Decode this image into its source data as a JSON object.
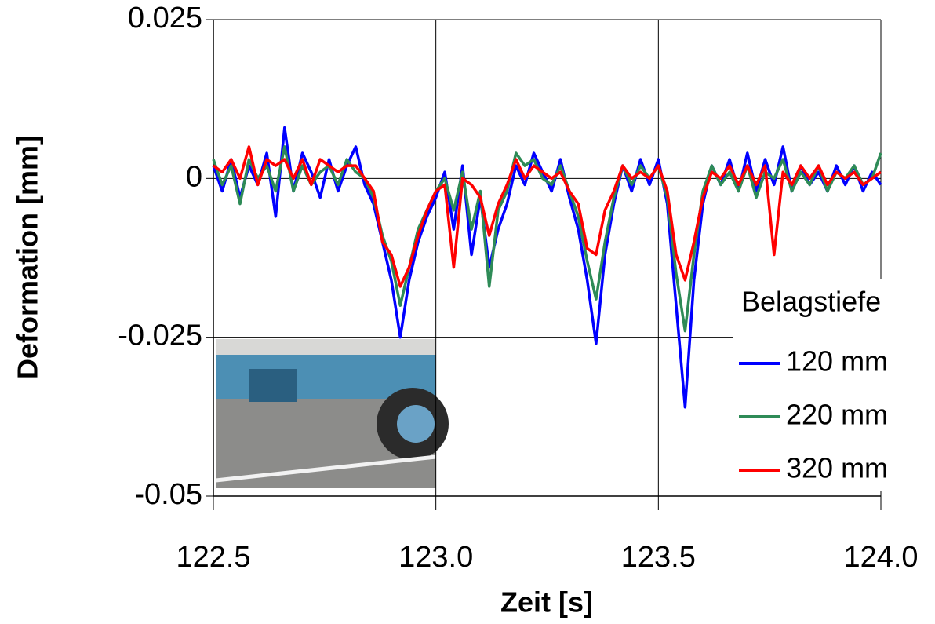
{
  "chart_data": {
    "type": "line",
    "x_label": "Zeit [s]",
    "y_label": "Deformation [mm]",
    "legend_title": "Belagstiefe",
    "legend": "right",
    "grid": true,
    "xlim": [
      122.5,
      124.0
    ],
    "xticks": [
      122.5,
      {
        "value": 123,
        "label": "123.0"
      },
      123.5,
      {
        "value": 124,
        "label": "124.0"
      }
    ],
    "ylim": [
      -0.05,
      0.025
    ],
    "yticks": [
      -0.05,
      -0.025,
      0,
      0.025
    ],
    "x": [
      122.5,
      122.52,
      122.54,
      122.56,
      122.58,
      122.6,
      122.62,
      122.64,
      122.66,
      122.68,
      122.7,
      122.72,
      122.74,
      122.76,
      122.78,
      122.8,
      122.82,
      122.84,
      122.86,
      122.88,
      122.9,
      122.92,
      122.94,
      122.96,
      122.98,
      123,
      123.02,
      123.04,
      123.06,
      123.08,
      123.1,
      123.12,
      123.14,
      123.16,
      123.18,
      123.2,
      123.22,
      123.24,
      123.26,
      123.28,
      123.3,
      123.32,
      123.34,
      123.36,
      123.38,
      123.4,
      123.42,
      123.44,
      123.46,
      123.48,
      123.5,
      123.52,
      123.54,
      123.56,
      123.58,
      123.6,
      123.62,
      123.64,
      123.66,
      123.68,
      123.7,
      123.72,
      123.74,
      123.76,
      123.78,
      123.8,
      123.82,
      123.84,
      123.86,
      123.88,
      123.9,
      123.92,
      123.94,
      123.96,
      123.98,
      124
    ],
    "series": [
      {
        "name": "120 mm",
        "color": "#0000ff",
        "values": [
          0.002,
          -0.002,
          0.003,
          -0.003,
          0.002,
          -0.001,
          0.004,
          -0.006,
          0.008,
          -0.002,
          0.004,
          0.001,
          -0.003,
          0.003,
          -0.002,
          0.002,
          0.005,
          -0.001,
          -0.004,
          -0.01,
          -0.016,
          -0.025,
          -0.016,
          -0.01,
          -0.006,
          -0.003,
          0.001,
          -0.008,
          0.002,
          -0.012,
          -0.003,
          -0.014,
          -0.008,
          -0.004,
          0.002,
          -0.001,
          0.004,
          0.001,
          -0.002,
          0.003,
          -0.003,
          -0.008,
          -0.016,
          -0.026,
          -0.012,
          -0.004,
          0.002,
          -0.002,
          0.003,
          -0.001,
          0.003,
          -0.004,
          -0.02,
          -0.036,
          -0.016,
          -0.004,
          0.002,
          -0.001,
          0.003,
          -0.002,
          0.004,
          -0.002,
          0.003,
          -0.001,
          0.005,
          -0.002,
          0.002,
          -0.001,
          0.001,
          -0.002,
          0.002,
          -0.001,
          0.002,
          -0.002,
          0.001,
          -0.001
        ]
      },
      {
        "name": "220 mm",
        "color": "#2e8b57",
        "values": [
          0.003,
          -0.001,
          0.002,
          -0.004,
          0.003,
          0,
          0.002,
          -0.002,
          0.005,
          -0.002,
          0.002,
          -0.001,
          0.001,
          0.002,
          -0.001,
          0.003,
          0.001,
          0,
          -0.003,
          -0.009,
          -0.013,
          -0.02,
          -0.014,
          -0.008,
          -0.005,
          -0.002,
          0,
          -0.005,
          0.001,
          -0.008,
          -0.002,
          -0.017,
          -0.005,
          -0.002,
          0.004,
          0.002,
          0.003,
          0,
          -0.001,
          0.002,
          -0.002,
          -0.006,
          -0.013,
          -0.019,
          -0.01,
          -0.003,
          0.002,
          -0.001,
          0.002,
          0,
          0.002,
          -0.003,
          -0.015,
          -0.024,
          -0.012,
          -0.002,
          0.002,
          -0.001,
          0.001,
          -0.002,
          0.002,
          -0.003,
          0.001,
          0,
          0.003,
          -0.002,
          0.001,
          -0.001,
          0.002,
          -0.002,
          0.001,
          0,
          0.002,
          -0.001,
          0,
          0.004
        ]
      },
      {
        "name": "320 mm",
        "color": "#ff0000",
        "values": [
          0.002,
          0.001,
          0.003,
          0,
          0.005,
          -0.001,
          0.003,
          0.002,
          0.003,
          0,
          0.003,
          -0.001,
          0.003,
          0.002,
          0.001,
          0.002,
          0.002,
          0,
          -0.002,
          -0.01,
          -0.012,
          -0.017,
          -0.014,
          -0.009,
          -0.005,
          -0.002,
          -0.001,
          -0.014,
          0,
          -0.001,
          -0.003,
          -0.009,
          -0.004,
          -0.001,
          0.003,
          0,
          0.002,
          0.001,
          0,
          0.001,
          -0.002,
          -0.004,
          -0.011,
          -0.012,
          -0.005,
          -0.002,
          0.002,
          0,
          0.001,
          0,
          0.002,
          -0.002,
          -0.012,
          -0.016,
          -0.01,
          -0.003,
          0.001,
          0,
          0.002,
          -0.001,
          0.002,
          -0.001,
          0.002,
          -0.012,
          0.001,
          -0.001,
          0.002,
          0,
          0.002,
          -0.001,
          0.001,
          0,
          0.001,
          -0.001,
          0,
          0.001
        ]
      }
    ]
  }
}
